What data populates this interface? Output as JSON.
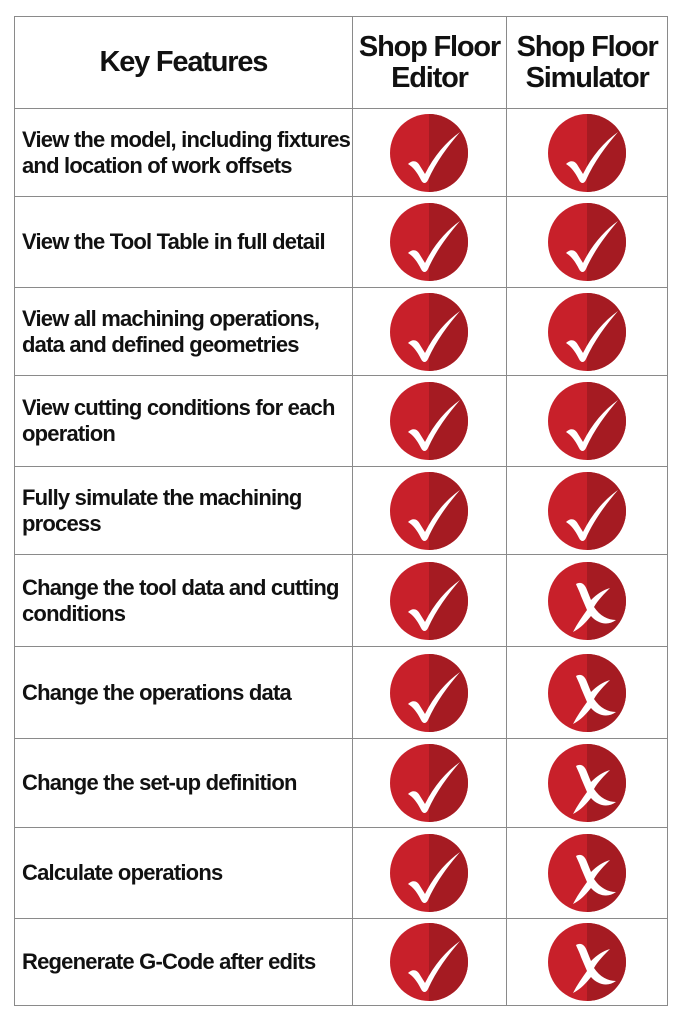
{
  "colors": {
    "accent_light": "#c8202a",
    "accent_dark": "#a51b22"
  },
  "headers": [
    "Key Features",
    "Shop Floor Editor",
    "Shop Floor Simulator"
  ],
  "rows": [
    {
      "feature": "View the model, including fixtures and location of work offsets",
      "editor": "check",
      "simulator": "check"
    },
    {
      "feature": "View the Tool Table in full detail",
      "editor": "check",
      "simulator": "check"
    },
    {
      "feature": "View all machining operations, data and defined geometries",
      "editor": "check",
      "simulator": "check"
    },
    {
      "feature": "View cutting conditions for each operation",
      "editor": "check",
      "simulator": "check"
    },
    {
      "feature": "Fully simulate the machining process",
      "editor": "check",
      "simulator": "check"
    },
    {
      "feature": "Change the tool data and cutting conditions",
      "editor": "check",
      "simulator": "cross"
    },
    {
      "feature": "Change the operations data",
      "editor": "check",
      "simulator": "cross"
    },
    {
      "feature": "Change the set-up definition",
      "editor": "check",
      "simulator": "cross"
    },
    {
      "feature": "Calculate operations",
      "editor": "check",
      "simulator": "cross"
    },
    {
      "feature": "Regenerate G-Code after edits",
      "editor": "check",
      "simulator": "cross"
    }
  ]
}
